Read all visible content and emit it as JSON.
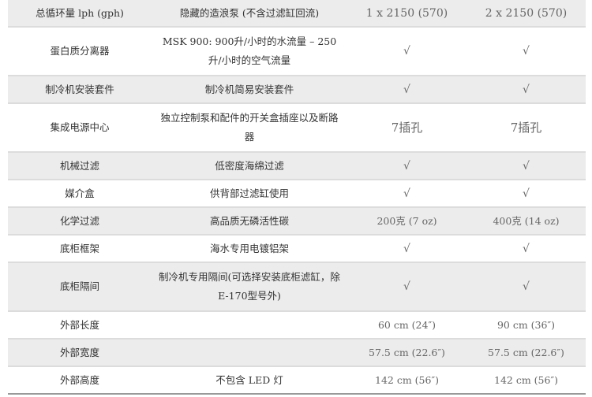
{
  "rows": [
    {
      "label": "总循环量 lph (gph)",
      "desc": "隐藏的造浪泵 (不含过滤缸回流)",
      "a": "1 x 2150 (570)",
      "b": "2 x 2150 (570)"
    },
    {
      "label": "蛋白质分离器",
      "desc": "MSK 900: 900升/小时的水流量 – 250升/小时的空气流量",
      "a": "√",
      "b": "√"
    },
    {
      "label": "制冷机安装套件",
      "desc": "制冷机简易安装套件",
      "a": "√",
      "b": "√"
    },
    {
      "label": "集成电源中心",
      "desc": "独立控制泵和配件的开关盒插座以及断路器",
      "a": "7插孔",
      "b": "7插孔"
    },
    {
      "label": "机械过滤",
      "desc": "低密度海绵过滤",
      "a": "√",
      "b": "√"
    },
    {
      "label": "媒介盒",
      "desc": "供背部过滤缸使用",
      "a": "√",
      "b": "√"
    },
    {
      "label": "化学过滤",
      "desc": "高品质无磷活性碳",
      "a": "200克 (7 oz)",
      "b": "400克 (14 oz)"
    },
    {
      "label": "底柜框架",
      "desc": "海水专用电镀铝架",
      "a": "√",
      "b": "√"
    },
    {
      "label": "底柜隔间",
      "desc": "制冷机专用隔间(可选择安装底柜滤缸，除E-170型号外)",
      "a": "√",
      "b": "√"
    },
    {
      "label": "外部长度",
      "desc": "",
      "a": "60 cm (24″)",
      "b": "90 cm  (36″)"
    },
    {
      "label": "外部宽度",
      "desc": "",
      "a": "57.5 cm (22.6″)",
      "b": "57.5 cm  (22.6″)"
    },
    {
      "label": "外部高度",
      "desc": "不包含 LED 灯",
      "a": "142 cm  (56″)",
      "b": "142 cm  (56″)"
    }
  ]
}
